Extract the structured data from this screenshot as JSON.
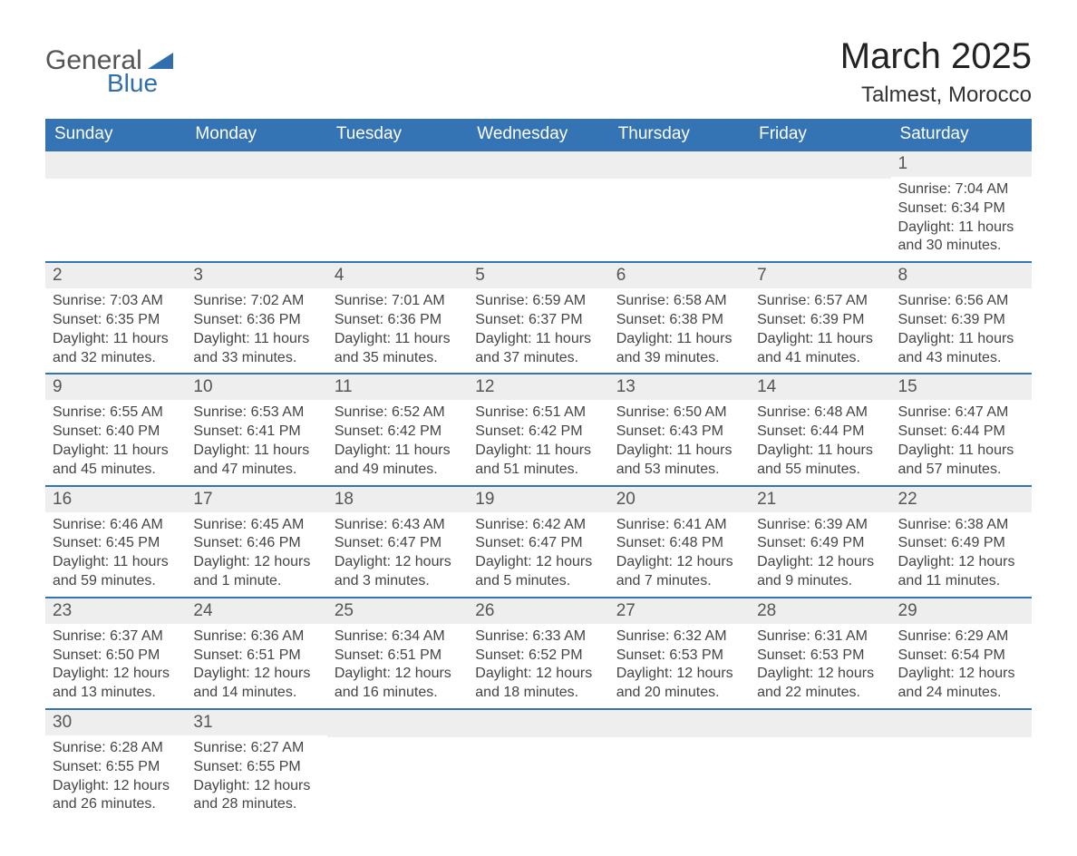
{
  "logo": {
    "text1": "General",
    "text2": "Blue"
  },
  "title": "March 2025",
  "subtitle": "Talmest, Morocco",
  "colors": {
    "header_bg": "#3474b5",
    "header_text": "#ffffff",
    "daynum_bg": "#eeeeee",
    "border": "#3474b5"
  },
  "columns": [
    "Sunday",
    "Monday",
    "Tuesday",
    "Wednesday",
    "Thursday",
    "Friday",
    "Saturday"
  ],
  "weeks": [
    [
      null,
      null,
      null,
      null,
      null,
      null,
      {
        "n": "1",
        "sr": "7:04 AM",
        "ss": "6:34 PM",
        "dl": "11 hours and 30 minutes."
      }
    ],
    [
      {
        "n": "2",
        "sr": "7:03 AM",
        "ss": "6:35 PM",
        "dl": "11 hours and 32 minutes."
      },
      {
        "n": "3",
        "sr": "7:02 AM",
        "ss": "6:36 PM",
        "dl": "11 hours and 33 minutes."
      },
      {
        "n": "4",
        "sr": "7:01 AM",
        "ss": "6:36 PM",
        "dl": "11 hours and 35 minutes."
      },
      {
        "n": "5",
        "sr": "6:59 AM",
        "ss": "6:37 PM",
        "dl": "11 hours and 37 minutes."
      },
      {
        "n": "6",
        "sr": "6:58 AM",
        "ss": "6:38 PM",
        "dl": "11 hours and 39 minutes."
      },
      {
        "n": "7",
        "sr": "6:57 AM",
        "ss": "6:39 PM",
        "dl": "11 hours and 41 minutes."
      },
      {
        "n": "8",
        "sr": "6:56 AM",
        "ss": "6:39 PM",
        "dl": "11 hours and 43 minutes."
      }
    ],
    [
      {
        "n": "9",
        "sr": "6:55 AM",
        "ss": "6:40 PM",
        "dl": "11 hours and 45 minutes."
      },
      {
        "n": "10",
        "sr": "6:53 AM",
        "ss": "6:41 PM",
        "dl": "11 hours and 47 minutes."
      },
      {
        "n": "11",
        "sr": "6:52 AM",
        "ss": "6:42 PM",
        "dl": "11 hours and 49 minutes."
      },
      {
        "n": "12",
        "sr": "6:51 AM",
        "ss": "6:42 PM",
        "dl": "11 hours and 51 minutes."
      },
      {
        "n": "13",
        "sr": "6:50 AM",
        "ss": "6:43 PM",
        "dl": "11 hours and 53 minutes."
      },
      {
        "n": "14",
        "sr": "6:48 AM",
        "ss": "6:44 PM",
        "dl": "11 hours and 55 minutes."
      },
      {
        "n": "15",
        "sr": "6:47 AM",
        "ss": "6:44 PM",
        "dl": "11 hours and 57 minutes."
      }
    ],
    [
      {
        "n": "16",
        "sr": "6:46 AM",
        "ss": "6:45 PM",
        "dl": "11 hours and 59 minutes."
      },
      {
        "n": "17",
        "sr": "6:45 AM",
        "ss": "6:46 PM",
        "dl": "12 hours and 1 minute."
      },
      {
        "n": "18",
        "sr": "6:43 AM",
        "ss": "6:47 PM",
        "dl": "12 hours and 3 minutes."
      },
      {
        "n": "19",
        "sr": "6:42 AM",
        "ss": "6:47 PM",
        "dl": "12 hours and 5 minutes."
      },
      {
        "n": "20",
        "sr": "6:41 AM",
        "ss": "6:48 PM",
        "dl": "12 hours and 7 minutes."
      },
      {
        "n": "21",
        "sr": "6:39 AM",
        "ss": "6:49 PM",
        "dl": "12 hours and 9 minutes."
      },
      {
        "n": "22",
        "sr": "6:38 AM",
        "ss": "6:49 PM",
        "dl": "12 hours and 11 minutes."
      }
    ],
    [
      {
        "n": "23",
        "sr": "6:37 AM",
        "ss": "6:50 PM",
        "dl": "12 hours and 13 minutes."
      },
      {
        "n": "24",
        "sr": "6:36 AM",
        "ss": "6:51 PM",
        "dl": "12 hours and 14 minutes."
      },
      {
        "n": "25",
        "sr": "6:34 AM",
        "ss": "6:51 PM",
        "dl": "12 hours and 16 minutes."
      },
      {
        "n": "26",
        "sr": "6:33 AM",
        "ss": "6:52 PM",
        "dl": "12 hours and 18 minutes."
      },
      {
        "n": "27",
        "sr": "6:32 AM",
        "ss": "6:53 PM",
        "dl": "12 hours and 20 minutes."
      },
      {
        "n": "28",
        "sr": "6:31 AM",
        "ss": "6:53 PM",
        "dl": "12 hours and 22 minutes."
      },
      {
        "n": "29",
        "sr": "6:29 AM",
        "ss": "6:54 PM",
        "dl": "12 hours and 24 minutes."
      }
    ],
    [
      {
        "n": "30",
        "sr": "6:28 AM",
        "ss": "6:55 PM",
        "dl": "12 hours and 26 minutes."
      },
      {
        "n": "31",
        "sr": "6:27 AM",
        "ss": "6:55 PM",
        "dl": "12 hours and 28 minutes."
      },
      null,
      null,
      null,
      null,
      null
    ]
  ],
  "labels": {
    "sunrise": "Sunrise:",
    "sunset": "Sunset:",
    "daylight": "Daylight:"
  }
}
